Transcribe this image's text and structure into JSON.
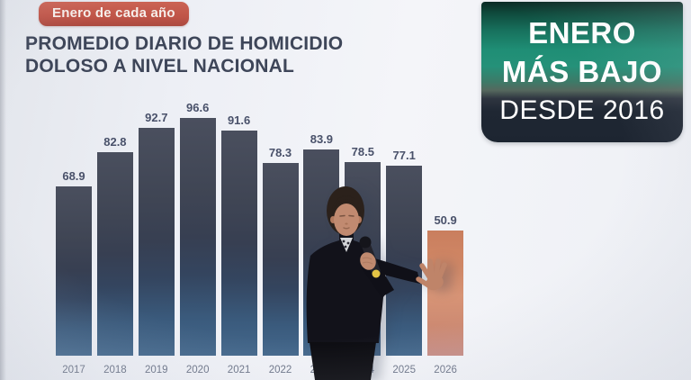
{
  "slide": {
    "badge_label": "Enero de cada año",
    "title_line1": "PROMEDIO DIARIO DE HOMICIDIO",
    "title_line2": "DOLOSO A NIVEL NACIONAL"
  },
  "banner": {
    "line1": "ENERO",
    "line2": "MÁS BAJO",
    "line3": "DESDE 2016"
  },
  "chart_data": {
    "type": "bar",
    "title": "PROMEDIO DIARIO DE HOMICIDIO DOLOSO A NIVEL NACIONAL",
    "subtitle": "Enero de cada año",
    "categories": [
      "2017",
      "2018",
      "2019",
      "2020",
      "2021",
      "2022",
      "2023",
      "2024",
      "2025",
      "2026"
    ],
    "values": [
      68.9,
      82.8,
      92.7,
      96.6,
      91.6,
      78.3,
      83.9,
      78.5,
      77.1,
      50.9
    ],
    "highlight_index": 9,
    "annotation": "ENERO MÁS BAJO DESDE 2016",
    "xlabel": "",
    "ylabel": "",
    "ylim": [
      0,
      100
    ],
    "grid": false,
    "legend": false,
    "value_labels_shown": true
  },
  "colors": {
    "badge_bg": "#c05548",
    "title_text": "#3e4659",
    "banner_teal": "#1f8e75",
    "banner_navy": "#1d2531",
    "bar_dark": "#3f4554",
    "bar_steel_blue": "#44688c",
    "bar_highlight": "#d18866",
    "value_label": "#49516a",
    "year_label": "#6d7588",
    "slide_bg": "#eef0f5"
  }
}
